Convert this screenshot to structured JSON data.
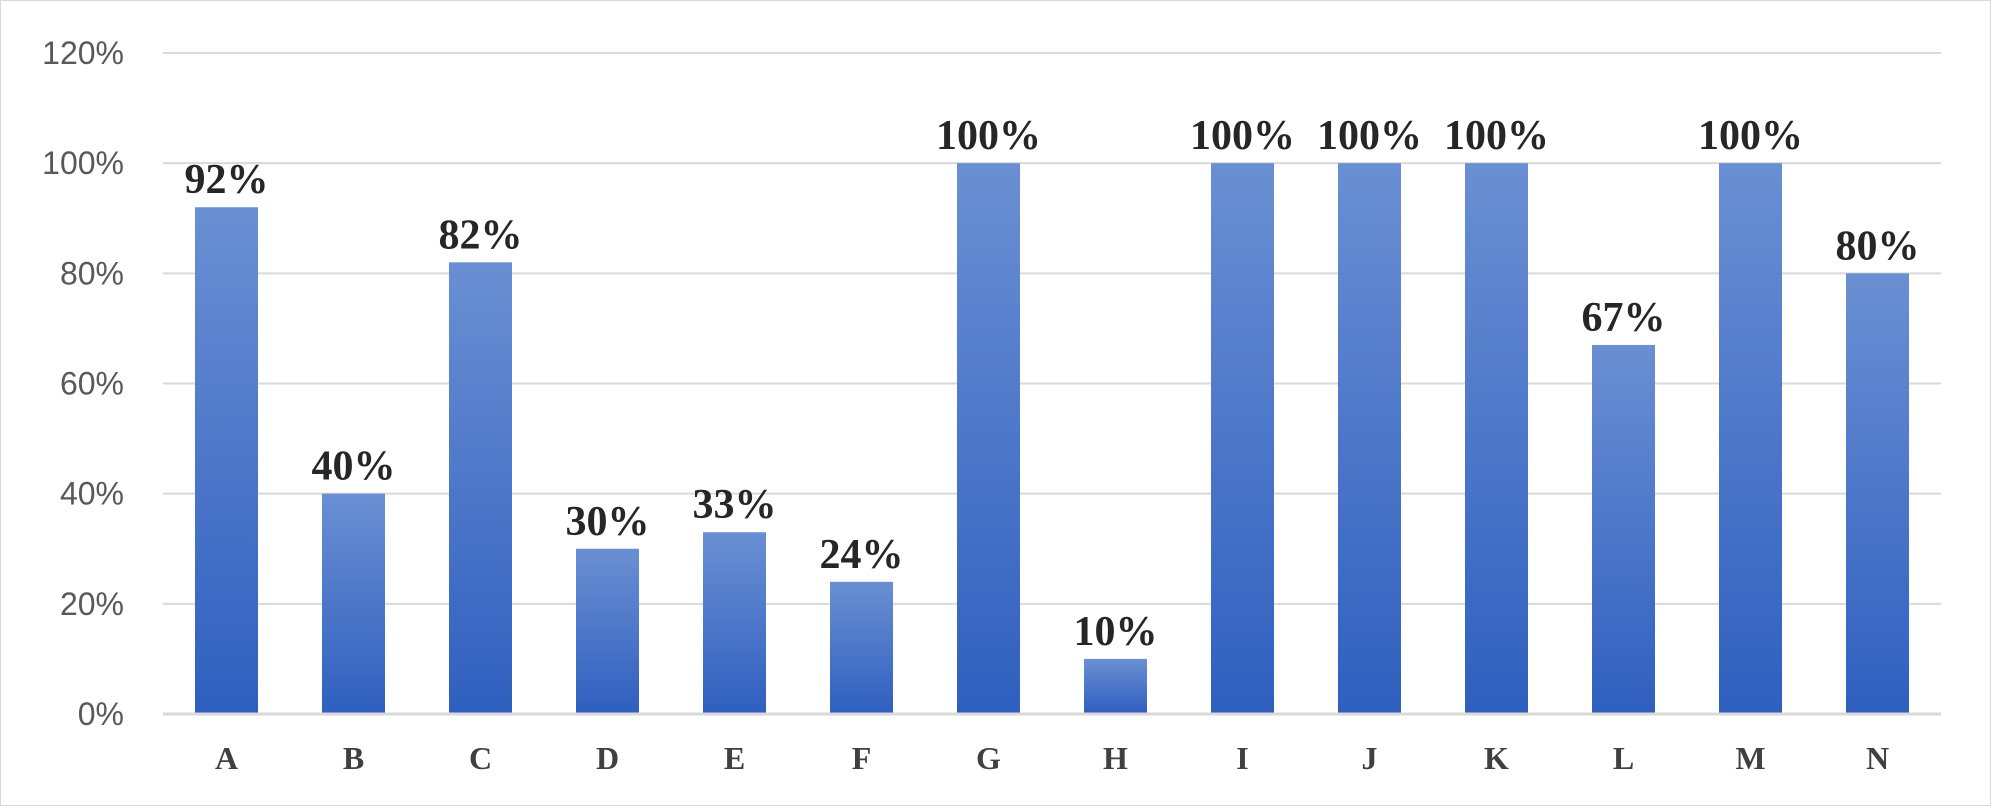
{
  "chart_data": {
    "type": "bar",
    "title": "",
    "xlabel": "",
    "ylabel": "",
    "categories": [
      "A",
      "B",
      "C",
      "D",
      "E",
      "F",
      "G",
      "H",
      "I",
      "J",
      "K",
      "L",
      "M",
      "N"
    ],
    "values": [
      92,
      40,
      82,
      30,
      33,
      24,
      100,
      10,
      100,
      100,
      100,
      67,
      100,
      80
    ],
    "data_labels": [
      "92%",
      "40%",
      "82%",
      "30%",
      "33%",
      "24%",
      "100%",
      "10%",
      "100%",
      "100%",
      "100%",
      "67%",
      "100%",
      "80%"
    ],
    "ylim": [
      0,
      120
    ],
    "yticks": [
      0,
      20,
      40,
      60,
      80,
      100,
      120
    ],
    "ytick_labels": [
      "0%",
      "20%",
      "40%",
      "60%",
      "80%",
      "100%",
      "120%"
    ],
    "grid": true,
    "legend": "none",
    "colors": {
      "bar_top": "#6a8fd3",
      "bar_bottom": "#2f5fbf",
      "grid": "#d9d9d9",
      "axis": "#d9d9d9"
    }
  }
}
